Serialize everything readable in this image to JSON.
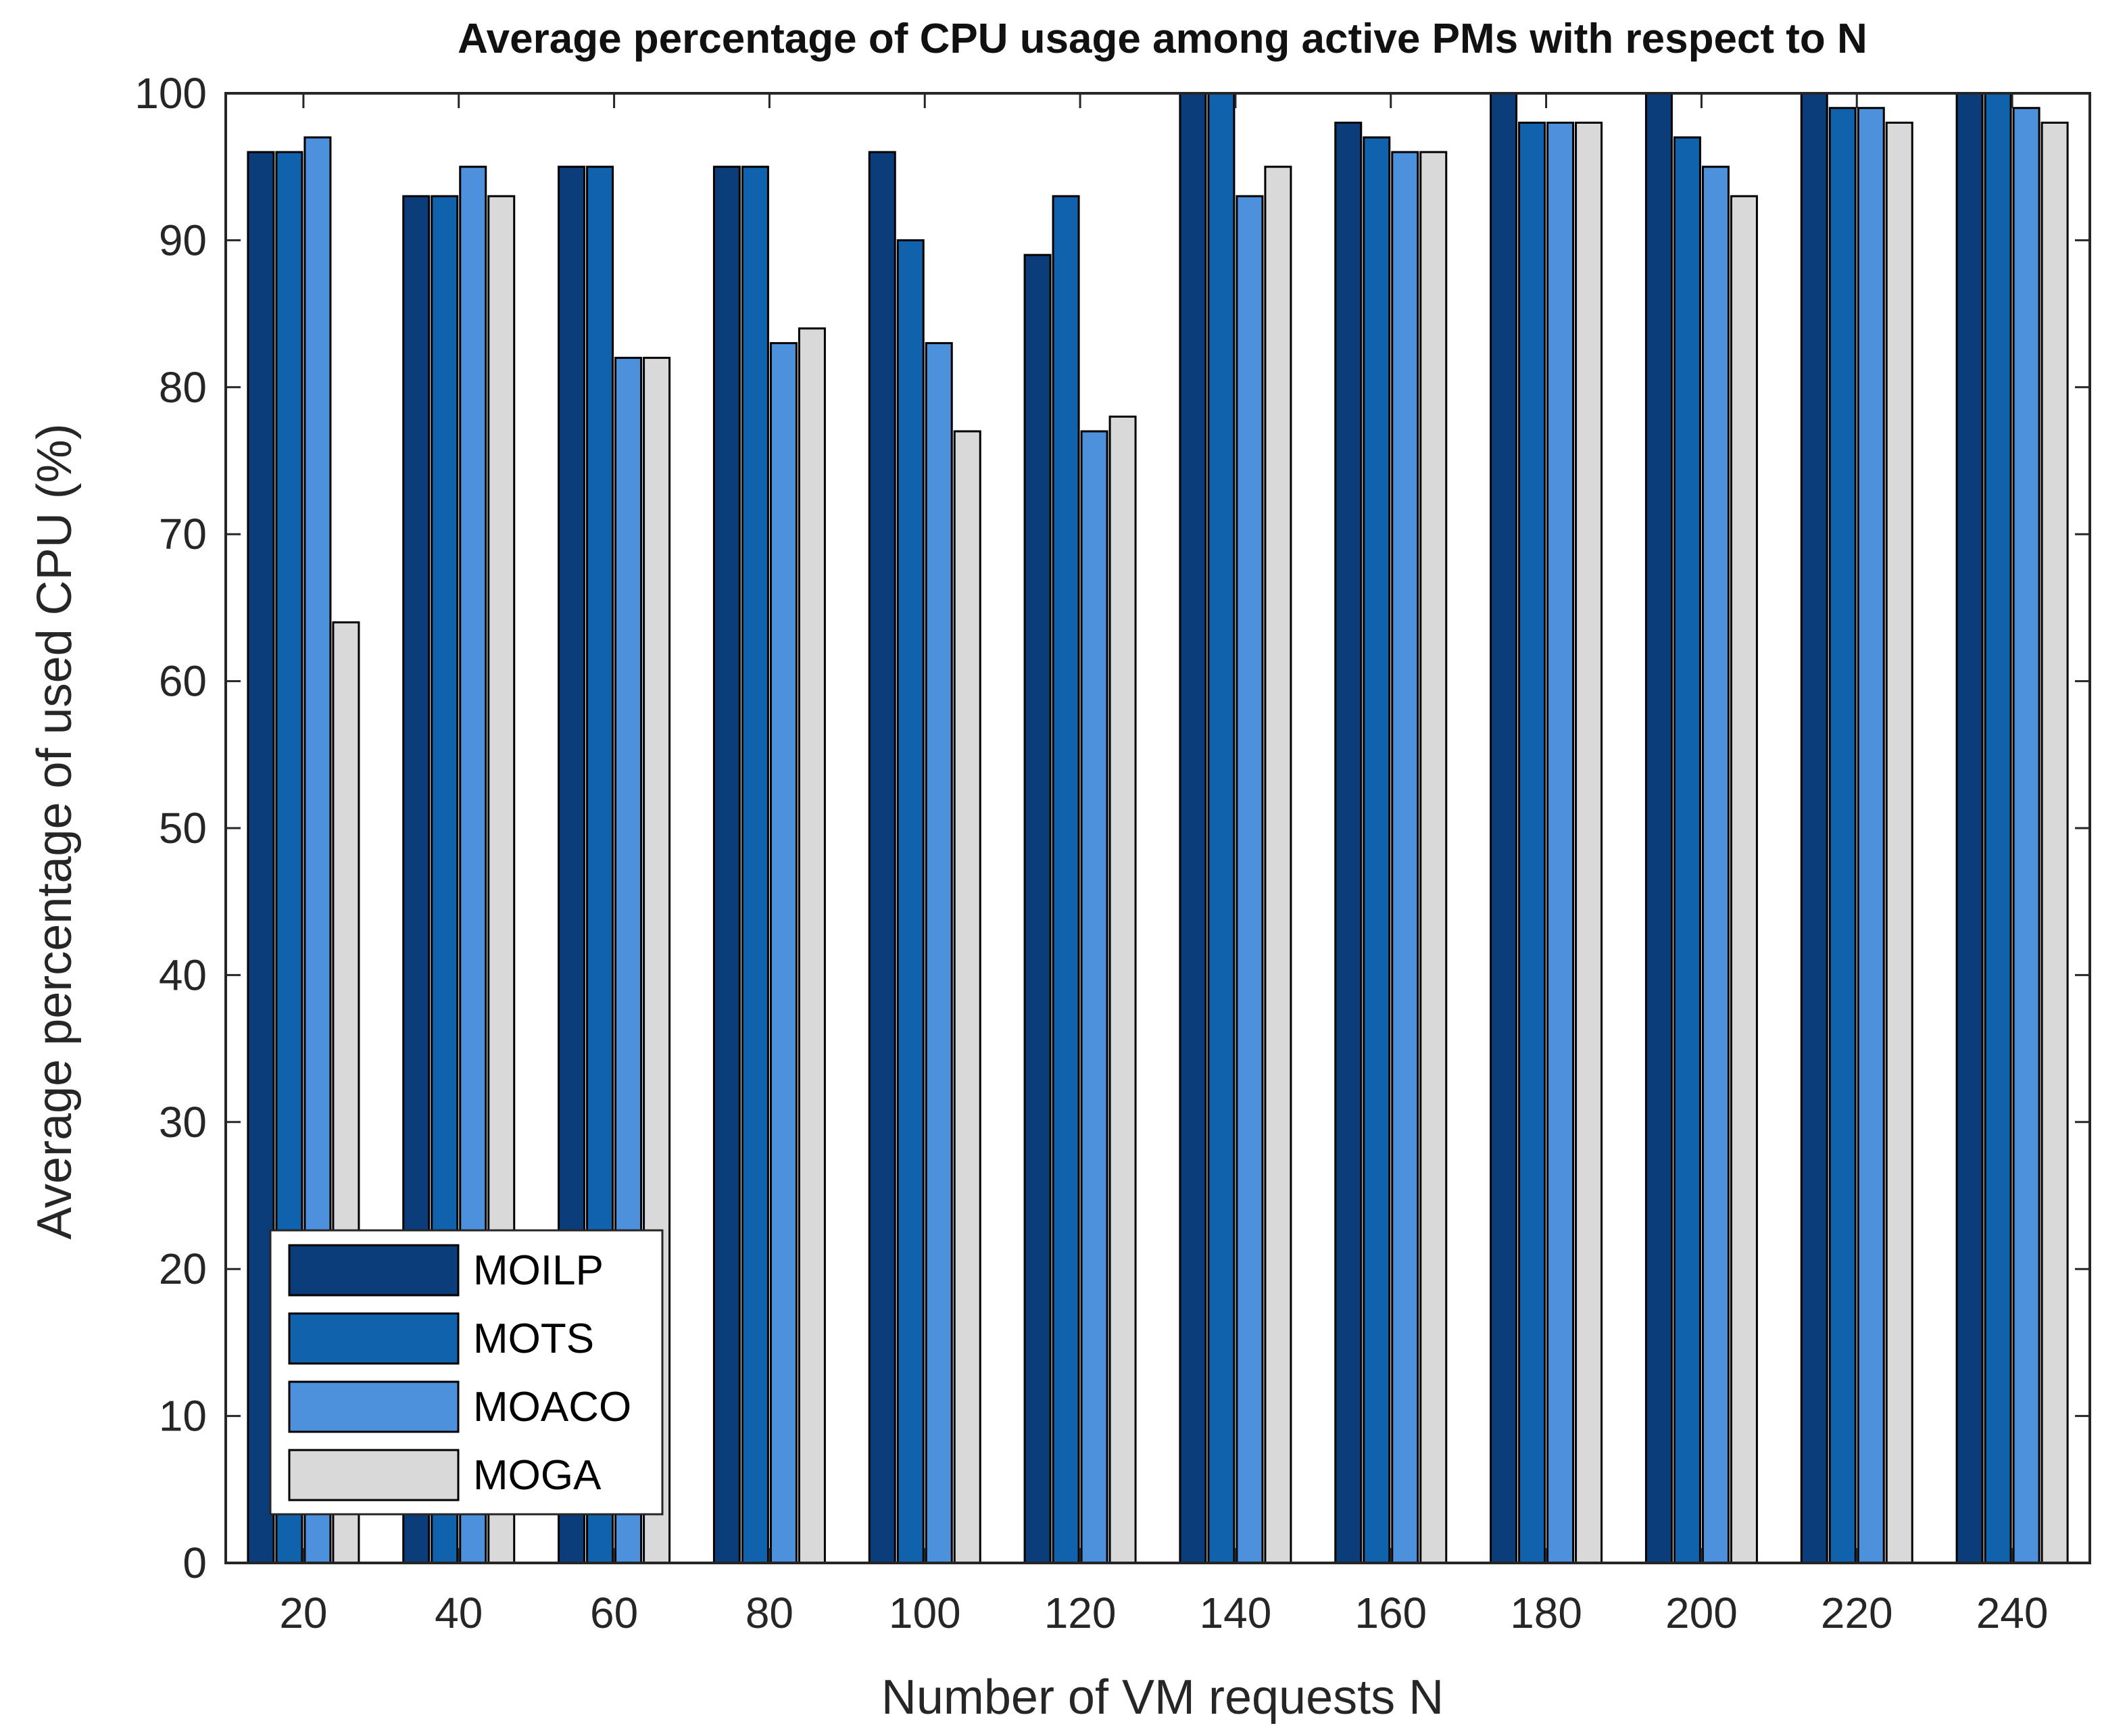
{
  "chart_data": {
    "type": "bar",
    "title": "Average percentage of CPU usage among active PMs with respect to N",
    "xlabel": "Number of VM requests N",
    "ylabel": "Average percentage of used CPU (%)",
    "ylim": [
      0,
      100
    ],
    "yticks": [
      0,
      10,
      20,
      30,
      40,
      50,
      60,
      70,
      80,
      90,
      100
    ],
    "categories": [
      "20",
      "40",
      "60",
      "80",
      "100",
      "120",
      "140",
      "160",
      "180",
      "200",
      "220",
      "240"
    ],
    "series": [
      {
        "name": "MOILP",
        "color": "#0b3d7a",
        "values": [
          96,
          93,
          95,
          95,
          96,
          89,
          100,
          98,
          100,
          100,
          100,
          100
        ]
      },
      {
        "name": "MOTS",
        "color": "#0f62ab",
        "values": [
          96,
          93,
          95,
          95,
          90,
          93,
          100,
          97,
          98,
          97,
          99,
          100
        ]
      },
      {
        "name": "MOACO",
        "color": "#4d90dc",
        "values": [
          97,
          95,
          82,
          83,
          83,
          77,
          93,
          96,
          98,
          95,
          99,
          99
        ]
      },
      {
        "name": "MOGA",
        "color": "#d9d9d9",
        "values": [
          64,
          93,
          82,
          84,
          77,
          78,
          95,
          96,
          98,
          93,
          98,
          98
        ]
      }
    ],
    "legend_position": "bottom-left",
    "grid": false
  }
}
